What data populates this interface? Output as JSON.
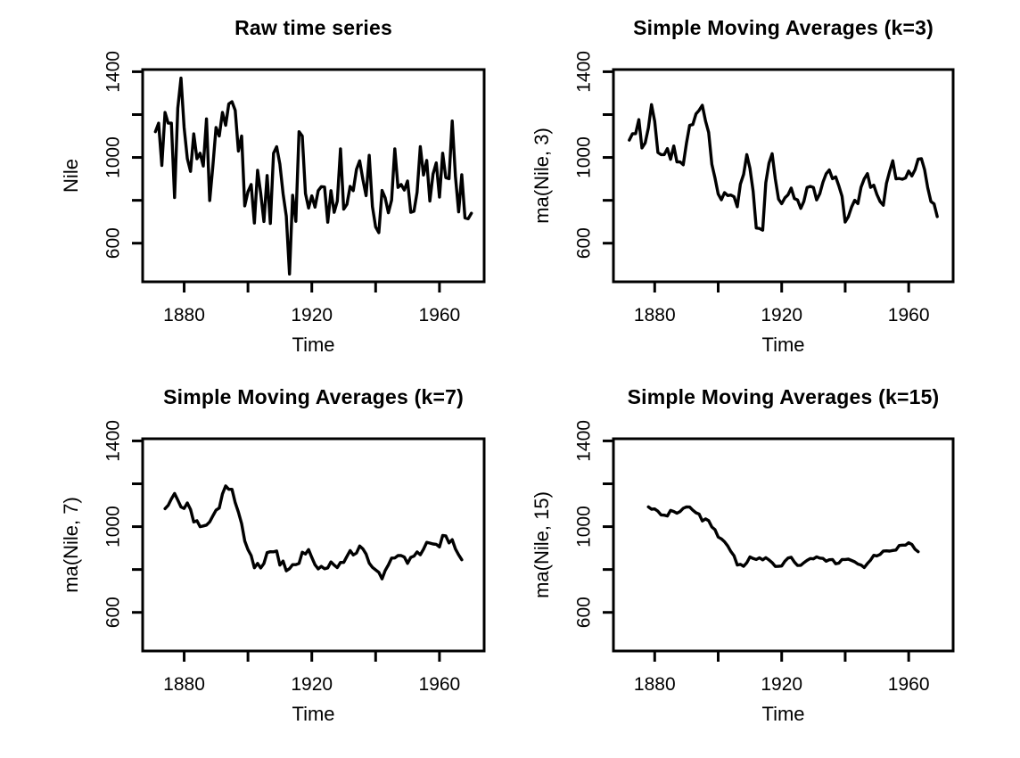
{
  "figure": {
    "background": "#ffffff",
    "line_color": "#000000",
    "text_color": "#000000"
  },
  "chart_data": {
    "type": "line",
    "dataset": "Nile",
    "start_year": 1871,
    "end_year": 1970,
    "values": [
      1120,
      1160,
      963,
      1210,
      1160,
      1160,
      813,
      1230,
      1370,
      1140,
      995,
      935,
      1110,
      994,
      1020,
      960,
      1180,
      799,
      958,
      1140,
      1100,
      1210,
      1150,
      1250,
      1260,
      1220,
      1030,
      1100,
      774,
      840,
      874,
      694,
      940,
      833,
      701,
      916,
      692,
      1020,
      1050,
      969,
      831,
      726,
      456,
      824,
      702,
      1120,
      1100,
      832,
      764,
      821,
      768,
      845,
      864,
      862,
      698,
      845,
      744,
      796,
      1040,
      759,
      781,
      865,
      845,
      944,
      984,
      897,
      822,
      1010,
      771,
      676,
      649,
      846,
      812,
      742,
      801,
      1040,
      860,
      874,
      848,
      890,
      744,
      749,
      838,
      1050,
      918,
      986,
      797,
      923,
      975,
      815,
      1020,
      906,
      901,
      1170,
      912,
      746,
      919,
      718,
      714,
      740
    ],
    "panels": [
      {
        "title": "Raw time series",
        "xlabel": "Time",
        "ylabel": "Nile",
        "ma_window": 1
      },
      {
        "title": "Simple Moving Averages (k=3)",
        "xlabel": "Time",
        "ylabel": "ma(Nile, 3)",
        "ma_window": 3
      },
      {
        "title": "Simple Moving Averages (k=7)",
        "xlabel": "Time",
        "ylabel": "ma(Nile, 7)",
        "ma_window": 7
      },
      {
        "title": "Simple Moving Averages (k=15)",
        "xlabel": "Time",
        "ylabel": "ma(Nile, 15)",
        "ma_window": 15
      }
    ],
    "axes": {
      "xlim": [
        1867,
        1974
      ],
      "ylim": [
        420,
        1410
      ],
      "xticks": [
        1880,
        1900,
        1920,
        1940,
        1960
      ],
      "xtick_labeled": [
        1880,
        1920,
        1960
      ],
      "yticks": [
        600,
        800,
        1000,
        1200,
        1400
      ],
      "ytick_labeled": [
        600,
        1000,
        1400
      ]
    },
    "grid": false,
    "legend": null
  }
}
